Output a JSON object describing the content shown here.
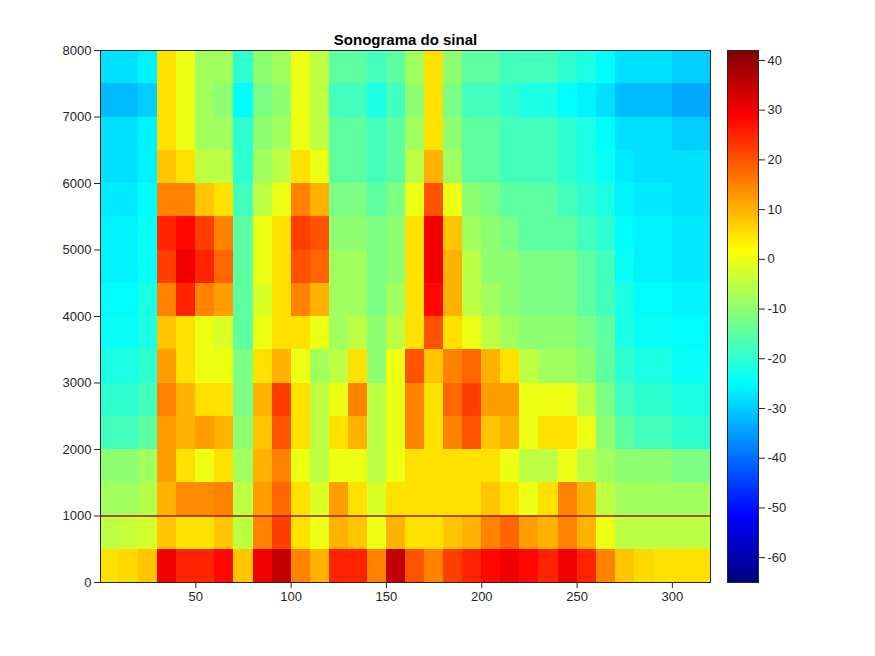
{
  "chart_data": {
    "type": "heatmap",
    "title": "Sonograma do sinal",
    "xlim": [
      0,
      320
    ],
    "xticks": [
      50,
      100,
      150,
      200,
      250,
      300
    ],
    "ylim": [
      0,
      8000
    ],
    "yticks": [
      0,
      1000,
      2000,
      3000,
      4000,
      5000,
      6000,
      7000,
      8000
    ],
    "lines": [
      {
        "y": 1000,
        "color": "#9b1c1c"
      }
    ],
    "cells": {
      "x_bins": [
        0,
        10,
        20,
        30,
        40,
        50,
        60,
        70,
        80,
        90,
        100,
        110,
        120,
        130,
        140,
        150,
        160,
        170,
        180,
        190,
        200,
        210,
        220,
        230,
        240,
        250,
        260,
        270,
        280,
        290,
        300,
        310,
        320
      ],
      "y_bins": [
        0,
        500,
        1000,
        1500,
        2000,
        2500,
        3000,
        3500,
        4000,
        4500,
        5000,
        5500,
        6000,
        6500,
        7000,
        7500,
        8000
      ],
      "values": [
        [
          5,
          -5,
          -8,
          -10,
          -18,
          -20,
          -22,
          -24,
          -25,
          -26,
          -26,
          -27,
          -28,
          -28,
          -32,
          -28
        ],
        [
          6,
          -4,
          -8,
          -10,
          -18,
          -20,
          -22,
          -24,
          -25,
          -26,
          -26,
          -27,
          -28,
          -28,
          -32,
          -28
        ],
        [
          8,
          -3,
          -6,
          -8,
          -15,
          -18,
          -20,
          -22,
          -22,
          -24,
          -24,
          -25,
          -26,
          -26,
          -30,
          -26
        ],
        [
          30,
          8,
          10,
          12,
          12,
          15,
          12,
          8,
          15,
          22,
          25,
          15,
          8,
          5,
          5,
          5
        ],
        [
          25,
          5,
          14,
          5,
          10,
          10,
          5,
          5,
          25,
          30,
          28,
          15,
          5,
          0,
          0,
          0
        ],
        [
          25,
          5,
          14,
          0,
          12,
          5,
          0,
          0,
          15,
          25,
          22,
          8,
          -5,
          -8,
          -8,
          -8
        ],
        [
          28,
          8,
          15,
          5,
          10,
          5,
          0,
          -2,
          12,
          18,
          15,
          5,
          -5,
          -8,
          -10,
          -8
        ],
        [
          8,
          -5,
          -5,
          -8,
          -10,
          -12,
          -12,
          -15,
          -15,
          -15,
          -15,
          -18,
          -20,
          -20,
          -25,
          -20
        ],
        [
          30,
          15,
          12,
          10,
          8,
          10,
          5,
          0,
          -2,
          0,
          0,
          -5,
          -8,
          -10,
          -12,
          -10
        ],
        [
          35,
          22,
          18,
          15,
          20,
          22,
          10,
          5,
          5,
          5,
          5,
          0,
          -5,
          -8,
          -10,
          -8
        ],
        [
          15,
          5,
          5,
          0,
          5,
          5,
          0,
          5,
          15,
          20,
          22,
          15,
          5,
          0,
          0,
          0
        ],
        [
          10,
          0,
          -2,
          -5,
          -5,
          -5,
          -8,
          0,
          10,
          18,
          20,
          10,
          0,
          -5,
          -5,
          -5
        ],
        [
          25,
          10,
          12,
          0,
          5,
          0,
          -5,
          -8,
          -8,
          -8,
          -10,
          -12,
          -15,
          -15,
          -18,
          -15
        ],
        [
          25,
          8,
          5,
          0,
          10,
          15,
          5,
          -5,
          -8,
          -8,
          -10,
          -12,
          -15,
          -15,
          -18,
          -15
        ],
        [
          15,
          0,
          -2,
          -5,
          -5,
          -5,
          -10,
          -10,
          -12,
          -12,
          -12,
          -15,
          -18,
          -18,
          -22,
          -18
        ],
        [
          35,
          10,
          5,
          0,
          0,
          0,
          0,
          -5,
          -8,
          -10,
          -10,
          -12,
          -15,
          -15,
          -18,
          -15
        ],
        [
          20,
          5,
          5,
          5,
          15,
          15,
          20,
          5,
          5,
          5,
          5,
          0,
          -5,
          -8,
          -10,
          -8
        ],
        [
          15,
          5,
          5,
          5,
          5,
          5,
          8,
          20,
          28,
          30,
          30,
          20,
          10,
          5,
          5,
          5
        ],
        [
          22,
          8,
          5,
          5,
          15,
          18,
          15,
          5,
          10,
          10,
          8,
          0,
          -8,
          -10,
          -12,
          -10
        ],
        [
          25,
          10,
          5,
          5,
          20,
          22,
          18,
          0,
          -5,
          -5,
          -8,
          -10,
          -15,
          -15,
          -18,
          -15
        ],
        [
          28,
          15,
          8,
          5,
          8,
          12,
          10,
          -5,
          -8,
          -10,
          -10,
          -12,
          -15,
          -15,
          -18,
          -15
        ],
        [
          30,
          18,
          5,
          0,
          10,
          12,
          5,
          -8,
          -10,
          -10,
          -12,
          -15,
          -18,
          -18,
          -20,
          -18
        ],
        [
          28,
          12,
          0,
          -5,
          0,
          0,
          -5,
          -10,
          -12,
          -12,
          -15,
          -15,
          -18,
          -18,
          -22,
          -18
        ],
        [
          25,
          10,
          5,
          -5,
          5,
          0,
          -8,
          -10,
          -12,
          -12,
          -15,
          -15,
          -18,
          -18,
          -22,
          -18
        ],
        [
          30,
          15,
          15,
          0,
          5,
          0,
          -8,
          -10,
          -12,
          -12,
          -15,
          -18,
          -20,
          -20,
          -25,
          -20
        ],
        [
          25,
          10,
          10,
          -5,
          0,
          -5,
          -10,
          -12,
          -15,
          -15,
          -18,
          -20,
          -22,
          -22,
          -26,
          -22
        ],
        [
          15,
          0,
          -5,
          -8,
          -10,
          -12,
          -15,
          -15,
          -18,
          -18,
          -20,
          -22,
          -24,
          -25,
          -28,
          -25
        ],
        [
          8,
          -5,
          -8,
          -10,
          -15,
          -18,
          -20,
          -22,
          -22,
          -24,
          -25,
          -26,
          -27,
          -28,
          -32,
          -28
        ],
        [
          6,
          -5,
          -8,
          -10,
          -18,
          -20,
          -22,
          -24,
          -25,
          -26,
          -26,
          -27,
          -28,
          -28,
          -32,
          -28
        ],
        [
          5,
          -5,
          -8,
          -10,
          -18,
          -20,
          -22,
          -24,
          -25,
          -26,
          -26,
          -27,
          -28,
          -28,
          -32,
          -28
        ],
        [
          5,
          -5,
          -8,
          -12,
          -20,
          -22,
          -24,
          -25,
          -26,
          -27,
          -27,
          -28,
          -28,
          -30,
          -34,
          -30
        ],
        [
          5,
          -5,
          -8,
          -12,
          -20,
          -22,
          -24,
          -25,
          -26,
          -27,
          -27,
          -28,
          -28,
          -30,
          -34,
          -30
        ]
      ]
    },
    "colorbar": {
      "range": [
        -65,
        42
      ],
      "ticks": [
        -60,
        -50,
        -40,
        -30,
        -20,
        -10,
        0,
        10,
        20,
        30,
        40
      ]
    }
  }
}
